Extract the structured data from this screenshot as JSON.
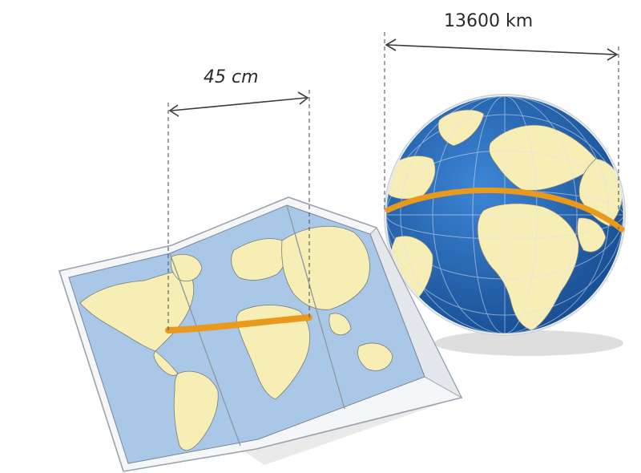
{
  "labels": {
    "map_distance": "45 cm",
    "globe_distance": "13600 km"
  },
  "colors": {
    "ocean_map": "#a9c8e8",
    "ocean_globe": "#1f64b5",
    "land": "#f6eeb4",
    "route": "#e99a1c",
    "paper": "#f4f6f8"
  }
}
